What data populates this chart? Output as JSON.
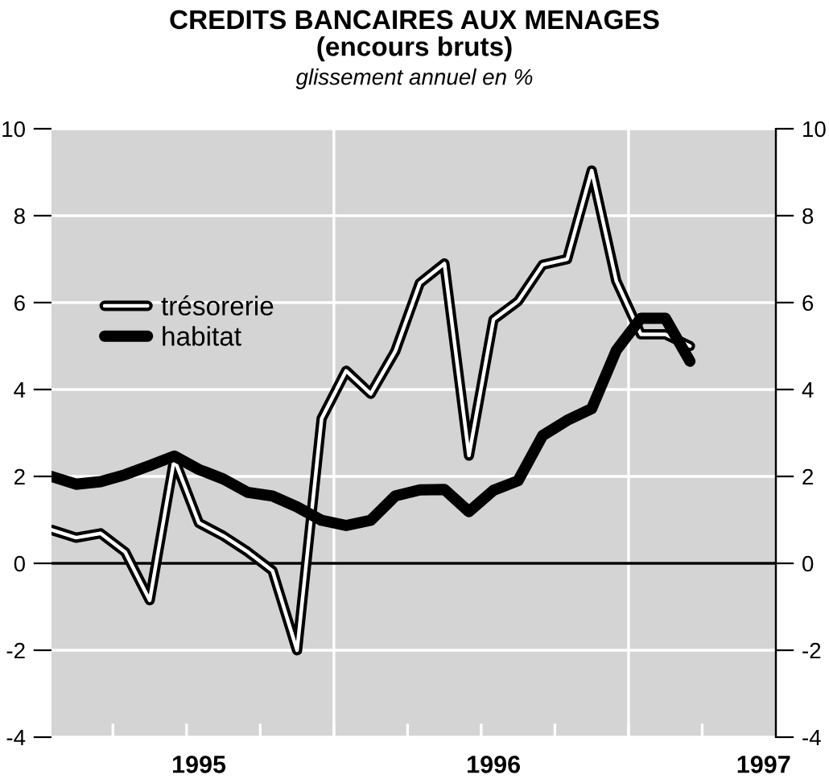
{
  "chart_data": {
    "type": "line",
    "title": "CREDITS BANCAIRES AUX MENAGES\n(encours bruts)",
    "subtitle": "glissement annuel en %",
    "categories": [
      null,
      null,
      null,
      null,
      null,
      null,
      "1995",
      null,
      null,
      null,
      null,
      null,
      null,
      null,
      null,
      null,
      null,
      null,
      "1996",
      null,
      null,
      null,
      null,
      null,
      null,
      null,
      null,
      null,
      null,
      "1997"
    ],
    "series": [
      {
        "name": "trésorerie",
        "color": "#000000",
        "line_style": "solid",
        "values": [
          0.77,
          0.59,
          0.69,
          0.26,
          -0.85,
          2.4,
          0.93,
          0.63,
          0.26,
          -0.17,
          -2.0,
          3.33,
          4.43,
          3.9,
          4.88,
          6.45,
          6.9,
          2.48,
          5.61,
          6.03,
          6.87,
          7.0,
          9.04,
          6.5,
          5.27,
          5.27,
          5.0,
          null,
          null,
          null
        ]
      },
      {
        "name": "habitat",
        "color": "#000000",
        "line_style": "solid",
        "values": [
          2.0,
          1.82,
          1.88,
          2.04,
          2.25,
          2.47,
          2.16,
          1.94,
          1.63,
          1.55,
          1.3,
          0.99,
          0.87,
          0.99,
          1.55,
          1.69,
          1.7,
          1.19,
          1.68,
          1.9,
          2.94,
          3.29,
          3.56,
          4.9,
          5.64,
          5.64,
          4.65,
          null,
          null,
          null
        ]
      }
    ],
    "ylim": [
      -4,
      10
    ],
    "yticks": [
      -4,
      -2,
      0,
      2,
      4,
      6,
      8,
      10
    ],
    "y2lim": [
      -4,
      10
    ],
    "y2ticks": [
      -4,
      -2,
      0,
      2,
      4,
      6,
      8,
      10
    ],
    "ref_lines": [
      {
        "axis": "y",
        "value": 0,
        "color": "#000000"
      }
    ],
    "grid": "y",
    "legend": "center left",
    "marker": "none"
  }
}
